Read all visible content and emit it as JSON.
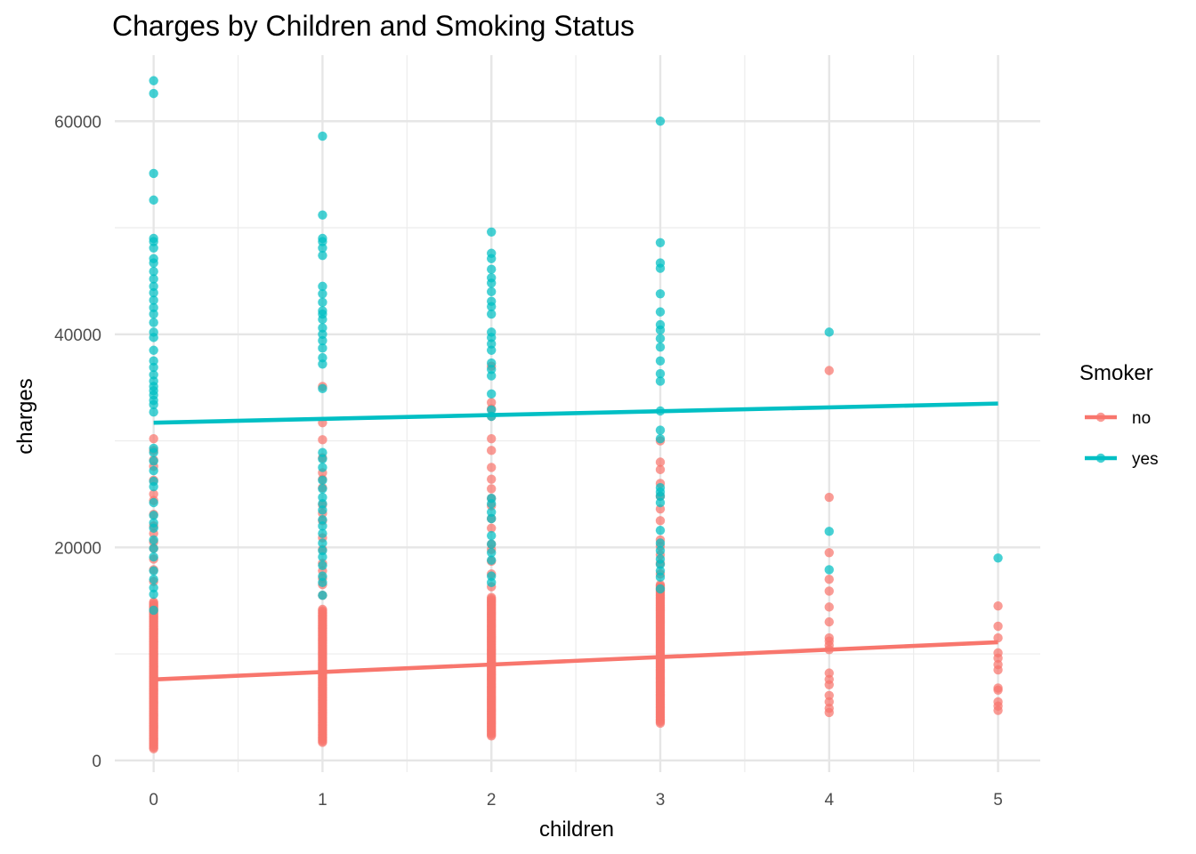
{
  "chart_data": {
    "type": "scatter",
    "title": "Charges by Children and Smoking Status",
    "xlabel": "children",
    "ylabel": "charges",
    "xlim": [
      -0.23,
      5.25
    ],
    "ylim": [
      -1100,
      66200
    ],
    "x_ticks": [
      "0",
      "1",
      "2",
      "3",
      "4",
      "5"
    ],
    "y_ticks": [
      "0",
      "20000",
      "40000",
      "60000"
    ],
    "y_minor_ticks": [
      10000,
      30000,
      50000
    ],
    "x_minor_ticks": [
      0.5,
      1.5,
      2.5,
      3.5,
      4.5
    ],
    "grid": true,
    "legend": {
      "title": "Smoker",
      "position": "right"
    },
    "series": [
      {
        "name": "no",
        "color": "#F8766D",
        "fit": {
          "x0": 0,
          "y0": 7600,
          "x1": 5,
          "y1": 11100
        },
        "points": [
          {
            "x": 0,
            "dense": [
              1100,
              14900
            ],
            "extra": [
              16800,
              17900,
              18900,
              19900,
              20500,
              21300,
              22000,
              23100,
              24400,
              25000,
              26300,
              27600,
              28200,
              29100,
              30200
            ]
          },
          {
            "x": 1,
            "dense": [
              1700,
              14300
            ],
            "extra": [
              15500,
              16500,
              17100,
              17800,
              18500,
              19800,
              20900,
              22500,
              23200,
              24000,
              25600,
              26400,
              27000,
              28400,
              30100,
              31700,
              35100
            ]
          },
          {
            "x": 2,
            "dense": [
              2300,
              15300
            ],
            "extra": [
              16300,
              17500,
              18700,
              19800,
              20300,
              21800,
              22700,
              23900,
              24600,
              25500,
              26400,
              27500,
              29100,
              30200,
              32300,
              33000,
              33600,
              37000
            ]
          },
          {
            "x": 3,
            "dense": [
              3500,
              16500
            ],
            "extra": [
              17500,
              18500,
              19300,
              20100,
              20700,
              22500,
              23600,
              24800,
              26000,
              27300,
              28000,
              30000
            ]
          },
          {
            "x": 4,
            "dense": [],
            "extra": [
              4500,
              4900,
              5500,
              6100,
              7100,
              7600,
              8200,
              10400,
              10800,
              11200,
              11500,
              13000,
              14400,
              15900,
              17000,
              19500,
              24700,
              36600
            ]
          },
          {
            "x": 5,
            "dense": [],
            "extra": [
              4700,
              5100,
              5500,
              6600,
              6800,
              8500,
              9000,
              9600,
              10100,
              11500,
              12600,
              14500
            ]
          }
        ]
      },
      {
        "name": "yes",
        "color": "#00BFC4",
        "fit": {
          "x0": 0,
          "y0": 31700,
          "x1": 5,
          "y1": 33500
        },
        "points": [
          {
            "x": 0,
            "values": [
              14100,
              15600,
              16200,
              17000,
              17800,
              19100,
              19900,
              20700,
              21800,
              22300,
              23000,
              24200,
              25700,
              26200,
              27200,
              28100,
              28900,
              29300,
              32700,
              33400,
              33800,
              34300,
              34700,
              35100,
              35600,
              36200,
              36900,
              37500,
              38500,
              39700,
              40200,
              41100,
              41900,
              42500,
              43200,
              43900,
              44500,
              45200,
              45900,
              46700,
              47100,
              48100,
              48700,
              49000,
              52600,
              55100,
              62600,
              63800
            ]
          },
          {
            "x": 1,
            "values": [
              15500,
              16700,
              17300,
              18300,
              19100,
              19700,
              20400,
              21300,
              22000,
              22600,
              23500,
              24100,
              24700,
              25500,
              26300,
              27500,
              28300,
              28900,
              34900,
              37200,
              37800,
              38700,
              39400,
              40000,
              40600,
              41400,
              41900,
              42200,
              43000,
              43800,
              44500,
              47400,
              48100,
              48700,
              49000,
              51200,
              58600
            ]
          },
          {
            "x": 2,
            "values": [
              16700,
              17300,
              18800,
              19500,
              20300,
              21100,
              22700,
              23300,
              24100,
              24600,
              32300,
              32900,
              34400,
              36100,
              36700,
              37300,
              38500,
              39100,
              39700,
              40200,
              41900,
              42600,
              43100,
              44000,
              44800,
              45300,
              46100,
              47100,
              47600,
              49600
            ]
          },
          {
            "x": 3,
            "values": [
              16100,
              17200,
              17800,
              18400,
              18900,
              19700,
              20400,
              21600,
              24200,
              24800,
              25200,
              25600,
              30200,
              31000,
              32800,
              35600,
              36300,
              37500,
              38800,
              39600,
              40400,
              40900,
              42100,
              43800,
              46200,
              46700,
              48600,
              60000
            ]
          },
          {
            "x": 4,
            "values": [
              17900,
              21500,
              40200
            ]
          },
          {
            "x": 5,
            "values": [
              19000
            ]
          }
        ]
      }
    ]
  }
}
